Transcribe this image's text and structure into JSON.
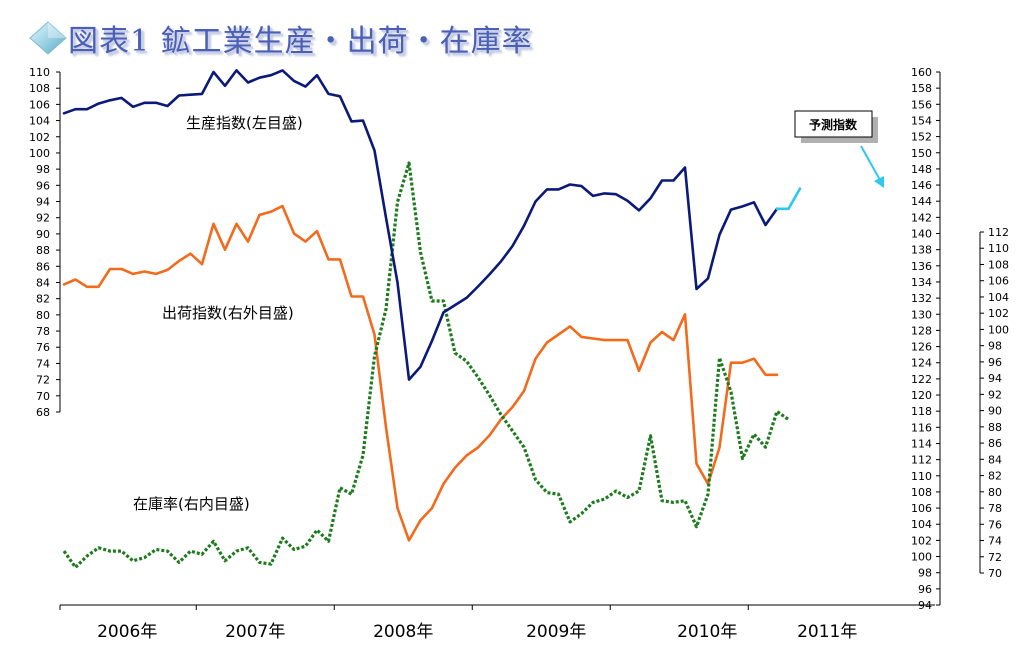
{
  "title": "図表1 鉱工業生産・出荷・在庫率",
  "icon": "diamond-icon",
  "colors": {
    "production": "#0b1a78",
    "shipment": "#f26b1d",
    "inventory": "#1e7b1e",
    "forecast": "#2ec8ef",
    "title": "#4a5fb5"
  },
  "chart_data": {
    "type": "line",
    "x_tick_labels": [
      "2006年",
      "2007年",
      "2008年",
      "2009年",
      "2010年",
      "2011年"
    ],
    "x": [
      "2006-01",
      "2006-02",
      "2006-03",
      "2006-04",
      "2006-05",
      "2006-06",
      "2006-07",
      "2006-08",
      "2006-09",
      "2006-10",
      "2006-11",
      "2006-12",
      "2007-01",
      "2007-02",
      "2007-03",
      "2007-04",
      "2007-05",
      "2007-06",
      "2007-07",
      "2007-08",
      "2007-09",
      "2007-10",
      "2007-11",
      "2007-12",
      "2008-01",
      "2008-02",
      "2008-03",
      "2008-04",
      "2008-05",
      "2008-06",
      "2008-07",
      "2008-08",
      "2008-09",
      "2008-10",
      "2008-11",
      "2008-12",
      "2009-01",
      "2009-02",
      "2009-03",
      "2009-04",
      "2009-05",
      "2009-06",
      "2009-07",
      "2009-08",
      "2009-09",
      "2009-10",
      "2009-11",
      "2009-12",
      "2010-01",
      "2010-02",
      "2010-03",
      "2010-04",
      "2010-05",
      "2010-06",
      "2010-07",
      "2010-08",
      "2010-09",
      "2010-10",
      "2010-11",
      "2010-12",
      "2011-01",
      "2011-02",
      "2011-03",
      "2011-04",
      "2011-05",
      "2011-06",
      "2011-07",
      "2011-08",
      "2011-09",
      "2011-10"
    ],
    "axes": {
      "left": {
        "min": 68,
        "max": 110,
        "step": 2,
        "series": "生産指数"
      },
      "right_outer": {
        "min": 94,
        "max": 160,
        "step": 2,
        "series": "出荷指数"
      },
      "right_inner": {
        "min": 70,
        "max": 112,
        "step": 2,
        "series": "在庫率"
      }
    },
    "series": [
      {
        "name": "生産指数(左目盛)",
        "axis": "left",
        "style": "solid",
        "values": [
          104.9,
          105.4,
          105.4,
          106.1,
          106.5,
          106.8,
          105.7,
          106.2,
          106.2,
          105.8,
          107.1,
          107.2,
          107.3,
          110.0,
          108.3,
          110.2,
          108.7,
          109.3,
          109.6,
          110.2,
          108.9,
          108.2,
          109.6,
          107.3,
          107.0,
          103.9,
          104.0,
          100.3,
          92.0,
          84.0,
          72.0,
          73.6,
          76.8,
          80.3,
          81.2,
          82.1,
          83.5,
          85.0,
          86.6,
          88.5,
          91.0,
          94.0,
          95.5,
          95.5,
          96.1,
          95.9,
          94.7,
          95.0,
          94.9,
          94.1,
          92.9,
          94.4,
          96.6,
          96.6,
          98.2,
          83.2,
          84.5,
          89.9,
          93.0,
          93.4,
          93.9,
          91.1,
          93.1,
          null,
          null,
          null,
          null,
          null,
          null,
          null
        ]
      },
      {
        "name": "予測指数",
        "axis": "left",
        "style": "solid",
        "values": [
          null,
          null,
          null,
          null,
          null,
          null,
          null,
          null,
          null,
          null,
          null,
          null,
          null,
          null,
          null,
          null,
          null,
          null,
          null,
          null,
          null,
          null,
          null,
          null,
          null,
          null,
          null,
          null,
          null,
          null,
          null,
          null,
          null,
          null,
          null,
          null,
          null,
          null,
          null,
          null,
          null,
          null,
          null,
          null,
          null,
          null,
          null,
          null,
          null,
          null,
          null,
          null,
          null,
          null,
          null,
          null,
          null,
          null,
          null,
          null,
          null,
          null,
          93.1,
          93.1,
          95.6,
          null,
          null,
          null,
          null,
          null
        ]
      },
      {
        "name": "出荷指数(右外目盛)",
        "axis": "right_outer",
        "style": "solid",
        "values": [
          133.7,
          134.3,
          133.4,
          133.4,
          135.6,
          135.6,
          135.0,
          135.3,
          135.0,
          135.5,
          136.6,
          137.5,
          136.2,
          141.2,
          138.0,
          141.2,
          139.0,
          142.3,
          142.7,
          143.4,
          140.0,
          139.0,
          140.3,
          136.8,
          136.8,
          132.2,
          132.2,
          127.5,
          116.0,
          106.0,
          102.0,
          104.5,
          106.0,
          109.0,
          111.0,
          112.5,
          113.5,
          115.0,
          117.0,
          118.5,
          120.5,
          124.5,
          126.5,
          127.5,
          128.5,
          127.2,
          127.0,
          126.8,
          126.8,
          126.8,
          123.0,
          126.5,
          127.8,
          126.8,
          130.0,
          111.5,
          109.0,
          113.5,
          124.0,
          124.0,
          124.5,
          122.5,
          122.5,
          null,
          null,
          null,
          null,
          null,
          null,
          null
        ]
      },
      {
        "name": "在庫率(右内目盛)",
        "axis": "right_inner",
        "style": "dotted",
        "values": [
          72.7,
          70.7,
          72.1,
          73.1,
          72.7,
          72.7,
          71.5,
          71.9,
          72.9,
          72.7,
          71.3,
          72.7,
          72.3,
          73.9,
          71.5,
          72.7,
          73.1,
          71.3,
          71.1,
          74.3,
          72.9,
          73.3,
          75.3,
          73.9,
          80.5,
          79.7,
          84.5,
          96.7,
          102.5,
          115.7,
          120.5,
          109.5,
          103.5,
          103.5,
          97.1,
          96.1,
          94.1,
          91.9,
          89.5,
          87.5,
          85.5,
          81.5,
          79.9,
          79.7,
          76.3,
          77.3,
          78.7,
          79.1,
          80.1,
          79.3,
          80.1,
          86.9,
          78.9,
          78.7,
          78.9,
          75.7,
          79.7,
          96.5,
          92.3,
          84.1,
          87.1,
          85.5,
          89.9,
          88.9,
          null,
          null,
          null,
          null,
          null,
          null
        ]
      }
    ],
    "labels": {
      "production": "生産指数(左目盛)",
      "shipment": "出荷指数(右外目盛)",
      "inventory": "在庫率(右内目盛)",
      "forecast": "予測指数"
    },
    "grid": false,
    "legend": "inline labels"
  }
}
